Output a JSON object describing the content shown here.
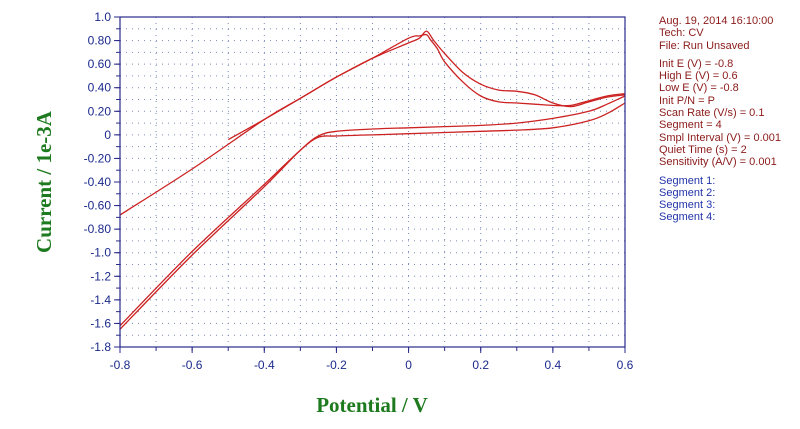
{
  "info": {
    "date_time": "Aug. 19, 2014   16:10:00",
    "tech": "Tech: CV",
    "file": "File: Run Unsaved",
    "params": [
      "Init E (V) = -0.8",
      "High E (V) = 0.6",
      "Low E (V) = -0.8",
      "Init P/N = P",
      "Scan Rate (V/s) = 0.1",
      "Segment = 4",
      "Smpl Interval (V) = 0.001",
      "Quiet Time (s) = 2",
      "Sensitivity (A/V) = 0.001"
    ],
    "segments": [
      "Segment 1:",
      "Segment 2:",
      "Segment 3:",
      "Segment 4:"
    ]
  },
  "chart_data": {
    "type": "line",
    "xlabel": "Potential / V",
    "ylabel": "Current / 1e-3A",
    "xlim": [
      -0.8,
      0.6
    ],
    "ylim": [
      -1.8,
      1.0
    ],
    "xticks": [
      -0.8,
      -0.6,
      -0.4,
      -0.2,
      0,
      0.2,
      0.4,
      0.6
    ],
    "xtick_labels": [
      "-0.8",
      "-0.6",
      "-0.4",
      "-0.2",
      "0",
      "0.2",
      "0.4",
      "0.6"
    ],
    "yticks": [
      1.0,
      0.8,
      0.6,
      0.4,
      0.2,
      0,
      -0.2,
      -0.4,
      -0.6,
      -0.8,
      -1.0,
      -1.2,
      -1.4,
      -1.6,
      -1.8
    ],
    "ytick_labels": [
      "1.0",
      "0.80",
      "0.60",
      "0.40",
      "0.20",
      "0",
      "-0.20",
      "-0.40",
      "-0.60",
      "-0.80",
      "-1.0",
      "-1.2",
      "-1.4",
      "-1.6",
      "-1.8"
    ],
    "grid": true,
    "line_color": "#cc2222",
    "series": [
      {
        "x": [
          -0.8,
          -0.6,
          -0.4,
          -0.3,
          -0.25,
          -0.2,
          -0.1,
          0,
          0.1,
          0.2,
          0.3,
          0.4,
          0.5,
          0.55,
          0.6
        ],
        "y": [
          -1.62,
          -0.99,
          -0.42,
          -0.13,
          -0.02,
          -0.01,
          0.0,
          0.01,
          0.02,
          0.03,
          0.04,
          0.06,
          0.12,
          0.18,
          0.27
        ]
      },
      {
        "x": [
          0.6,
          0.55,
          0.5,
          0.45,
          0.4,
          0.35,
          0.3,
          0.25,
          0.2,
          0.15,
          0.1,
          0.07,
          0.05,
          0.03,
          0.0,
          -0.1,
          -0.2,
          -0.3,
          -0.4,
          -0.6,
          -0.8
        ],
        "y": [
          0.34,
          0.32,
          0.28,
          0.24,
          0.27,
          0.34,
          0.37,
          0.38,
          0.43,
          0.53,
          0.69,
          0.8,
          0.88,
          0.82,
          0.78,
          0.65,
          0.49,
          0.31,
          0.13,
          -0.29,
          -0.68
        ]
      },
      {
        "x": [
          -0.8,
          -0.6,
          -0.4,
          -0.3,
          -0.25,
          -0.2,
          -0.1,
          0,
          0.1,
          0.2,
          0.3,
          0.4,
          0.5,
          0.55,
          0.6
        ],
        "y": [
          -1.65,
          -1.02,
          -0.44,
          -0.13,
          -0.01,
          0.03,
          0.05,
          0.06,
          0.07,
          0.08,
          0.1,
          0.14,
          0.2,
          0.26,
          0.33
        ]
      },
      {
        "x": [
          0.6,
          0.55,
          0.5,
          0.45,
          0.4,
          0.35,
          0.3,
          0.25,
          0.2,
          0.15,
          0.1,
          0.08,
          0.06,
          0.05,
          0.03,
          0.0,
          -0.1,
          -0.2,
          -0.3,
          -0.4,
          -0.5
        ],
        "y": [
          0.35,
          0.33,
          0.29,
          0.25,
          0.25,
          0.26,
          0.27,
          0.28,
          0.33,
          0.45,
          0.62,
          0.73,
          0.81,
          0.85,
          0.84,
          0.82,
          0.65,
          0.49,
          0.31,
          0.13,
          -0.04
        ]
      }
    ]
  }
}
